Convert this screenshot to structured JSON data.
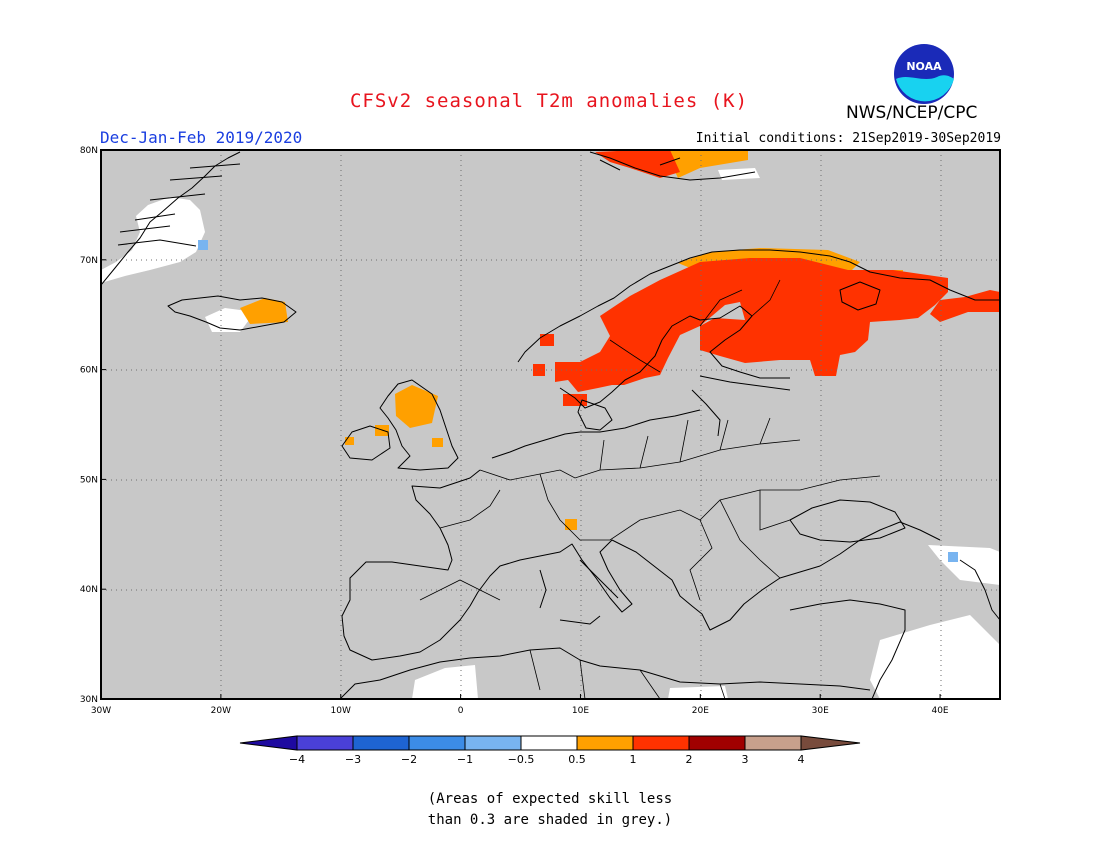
{
  "title": "CFSv2 seasonal T2m anomalies (K)",
  "agency": "NWS/NCEP/CPC",
  "logo_text": "NOAA",
  "season": "Dec-Jan-Feb 2019/2020",
  "initial_conditions": "Initial conditions: 21Sep2019-30Sep2019",
  "map": {
    "lon_range": [
      -30,
      45
    ],
    "lat_range": [
      30,
      80
    ],
    "lon_ticks": [
      {
        "value": -30,
        "label": "30W"
      },
      {
        "value": -20,
        "label": "20W"
      },
      {
        "value": -10,
        "label": "10W"
      },
      {
        "value": 0,
        "label": "0"
      },
      {
        "value": 10,
        "label": "10E"
      },
      {
        "value": 20,
        "label": "20E"
      },
      {
        "value": 30,
        "label": "30E"
      },
      {
        "value": 40,
        "label": "40E"
      }
    ],
    "lat_ticks": [
      {
        "value": 30,
        "label": "30N"
      },
      {
        "value": 40,
        "label": "40N"
      },
      {
        "value": 50,
        "label": "50N"
      },
      {
        "value": 60,
        "label": "60N"
      },
      {
        "value": 70,
        "label": "70N"
      },
      {
        "value": 80,
        "label": "80N"
      }
    ],
    "background_color": "#c8c8c8",
    "gridlines": "dotted"
  },
  "colorbar": {
    "boundaries": [
      {
        "label": "−4"
      },
      {
        "label": "−3"
      },
      {
        "label": "−2"
      },
      {
        "label": "−1"
      },
      {
        "label": "−0.5"
      },
      {
        "label": "0.5"
      },
      {
        "label": "1"
      },
      {
        "label": "2"
      },
      {
        "label": "3"
      },
      {
        "label": "4"
      }
    ],
    "colors": [
      "#1e0aa0",
      "#4a40d8",
      "#1e64d2",
      "#3c8ce6",
      "#78b4f0",
      "#ffffff",
      "#ffa000",
      "#ff3200",
      "#a00000",
      "#c8a08c",
      "#784b3c"
    ]
  },
  "note_line1": "(Areas of expected skill less",
  "note_line2": "than 0.3 are shaded in grey.)"
}
